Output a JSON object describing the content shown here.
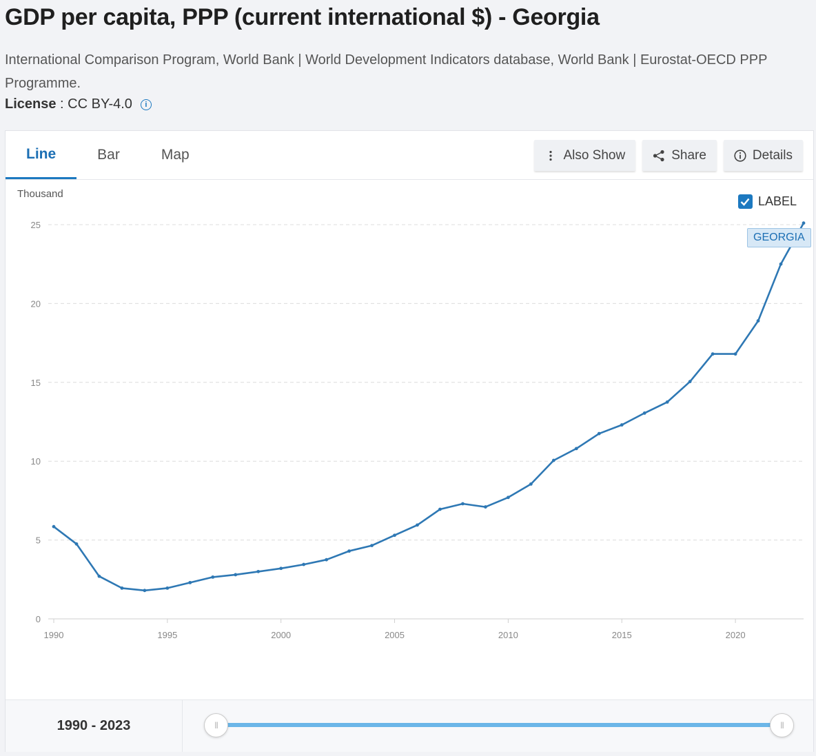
{
  "header": {
    "title": "GDP per capita, PPP (current international $) - Georgia",
    "sources": "International Comparison Program, World Bank | World Development Indicators database, World Bank | Eurostat-OECD PPP Programme.",
    "license_label": "License",
    "license_sep": " : ",
    "license_value": "CC BY-4.0",
    "info_glyph": "i"
  },
  "tabs": [
    {
      "label": "Line",
      "active": true
    },
    {
      "label": "Bar",
      "active": false
    },
    {
      "label": "Map",
      "active": false
    }
  ],
  "actions": {
    "also_show": "Also Show",
    "share": "Share",
    "details": "Details"
  },
  "chart": {
    "unit_label": "Thousand",
    "label_toggle": "LABEL",
    "label_checked": true,
    "series_tag": "GEORGIA",
    "line_color": "#2e78b4"
  },
  "chart_data": {
    "type": "line",
    "title": "GDP per capita, PPP (current international $) - Georgia",
    "ylabel": "Thousand",
    "xlim": [
      1990,
      2023
    ],
    "ylim": [
      0,
      25
    ],
    "y_ticks": [
      0,
      5,
      10,
      15,
      20,
      25
    ],
    "x_ticks": [
      1990,
      1995,
      2000,
      2005,
      2010,
      2015,
      2020
    ],
    "grid": true,
    "series": [
      {
        "name": "GEORGIA",
        "x": [
          1990,
          1991,
          1992,
          1993,
          1994,
          1995,
          1996,
          1997,
          1998,
          1999,
          2000,
          2001,
          2002,
          2003,
          2004,
          2005,
          2006,
          2007,
          2008,
          2009,
          2010,
          2011,
          2012,
          2013,
          2014,
          2015,
          2016,
          2017,
          2018,
          2019,
          2020,
          2021,
          2022,
          2023
        ],
        "values": [
          5.85,
          4.75,
          2.7,
          1.95,
          1.8,
          1.95,
          2.3,
          2.65,
          2.8,
          3.0,
          3.2,
          3.45,
          3.75,
          4.3,
          4.65,
          5.3,
          5.95,
          6.95,
          7.3,
          7.1,
          7.7,
          8.55,
          10.05,
          10.8,
          11.75,
          12.3,
          13.05,
          13.75,
          15.05,
          16.8,
          16.8,
          18.9,
          22.5,
          25.1
        ]
      }
    ]
  },
  "footer": {
    "year_range": "1990 - 2023",
    "handle_glyph": "|||"
  }
}
